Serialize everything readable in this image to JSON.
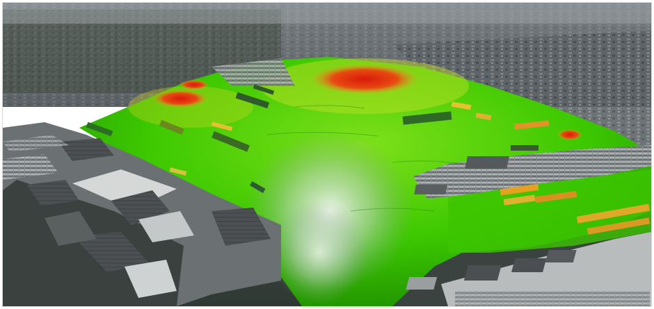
{
  "image": {
    "subject": "aerial-port-heatmap",
    "colors": {
      "sky_haze": "#9a9fa3",
      "city_far": "#6f7479",
      "city_near": "#52575a",
      "water_dark": "#3a433f",
      "heat_low": "#33cc00",
      "heat_mid": "#bde020",
      "heat_high": "#e0320f",
      "reflection": "#e6ece8",
      "quay": "#b9bcbc",
      "warehouse": "#4a4e50",
      "warehouse_light": "#d6d8d8"
    },
    "icons": [
      "ship-icon",
      "container-stack-icon",
      "warehouse-icon"
    ]
  }
}
